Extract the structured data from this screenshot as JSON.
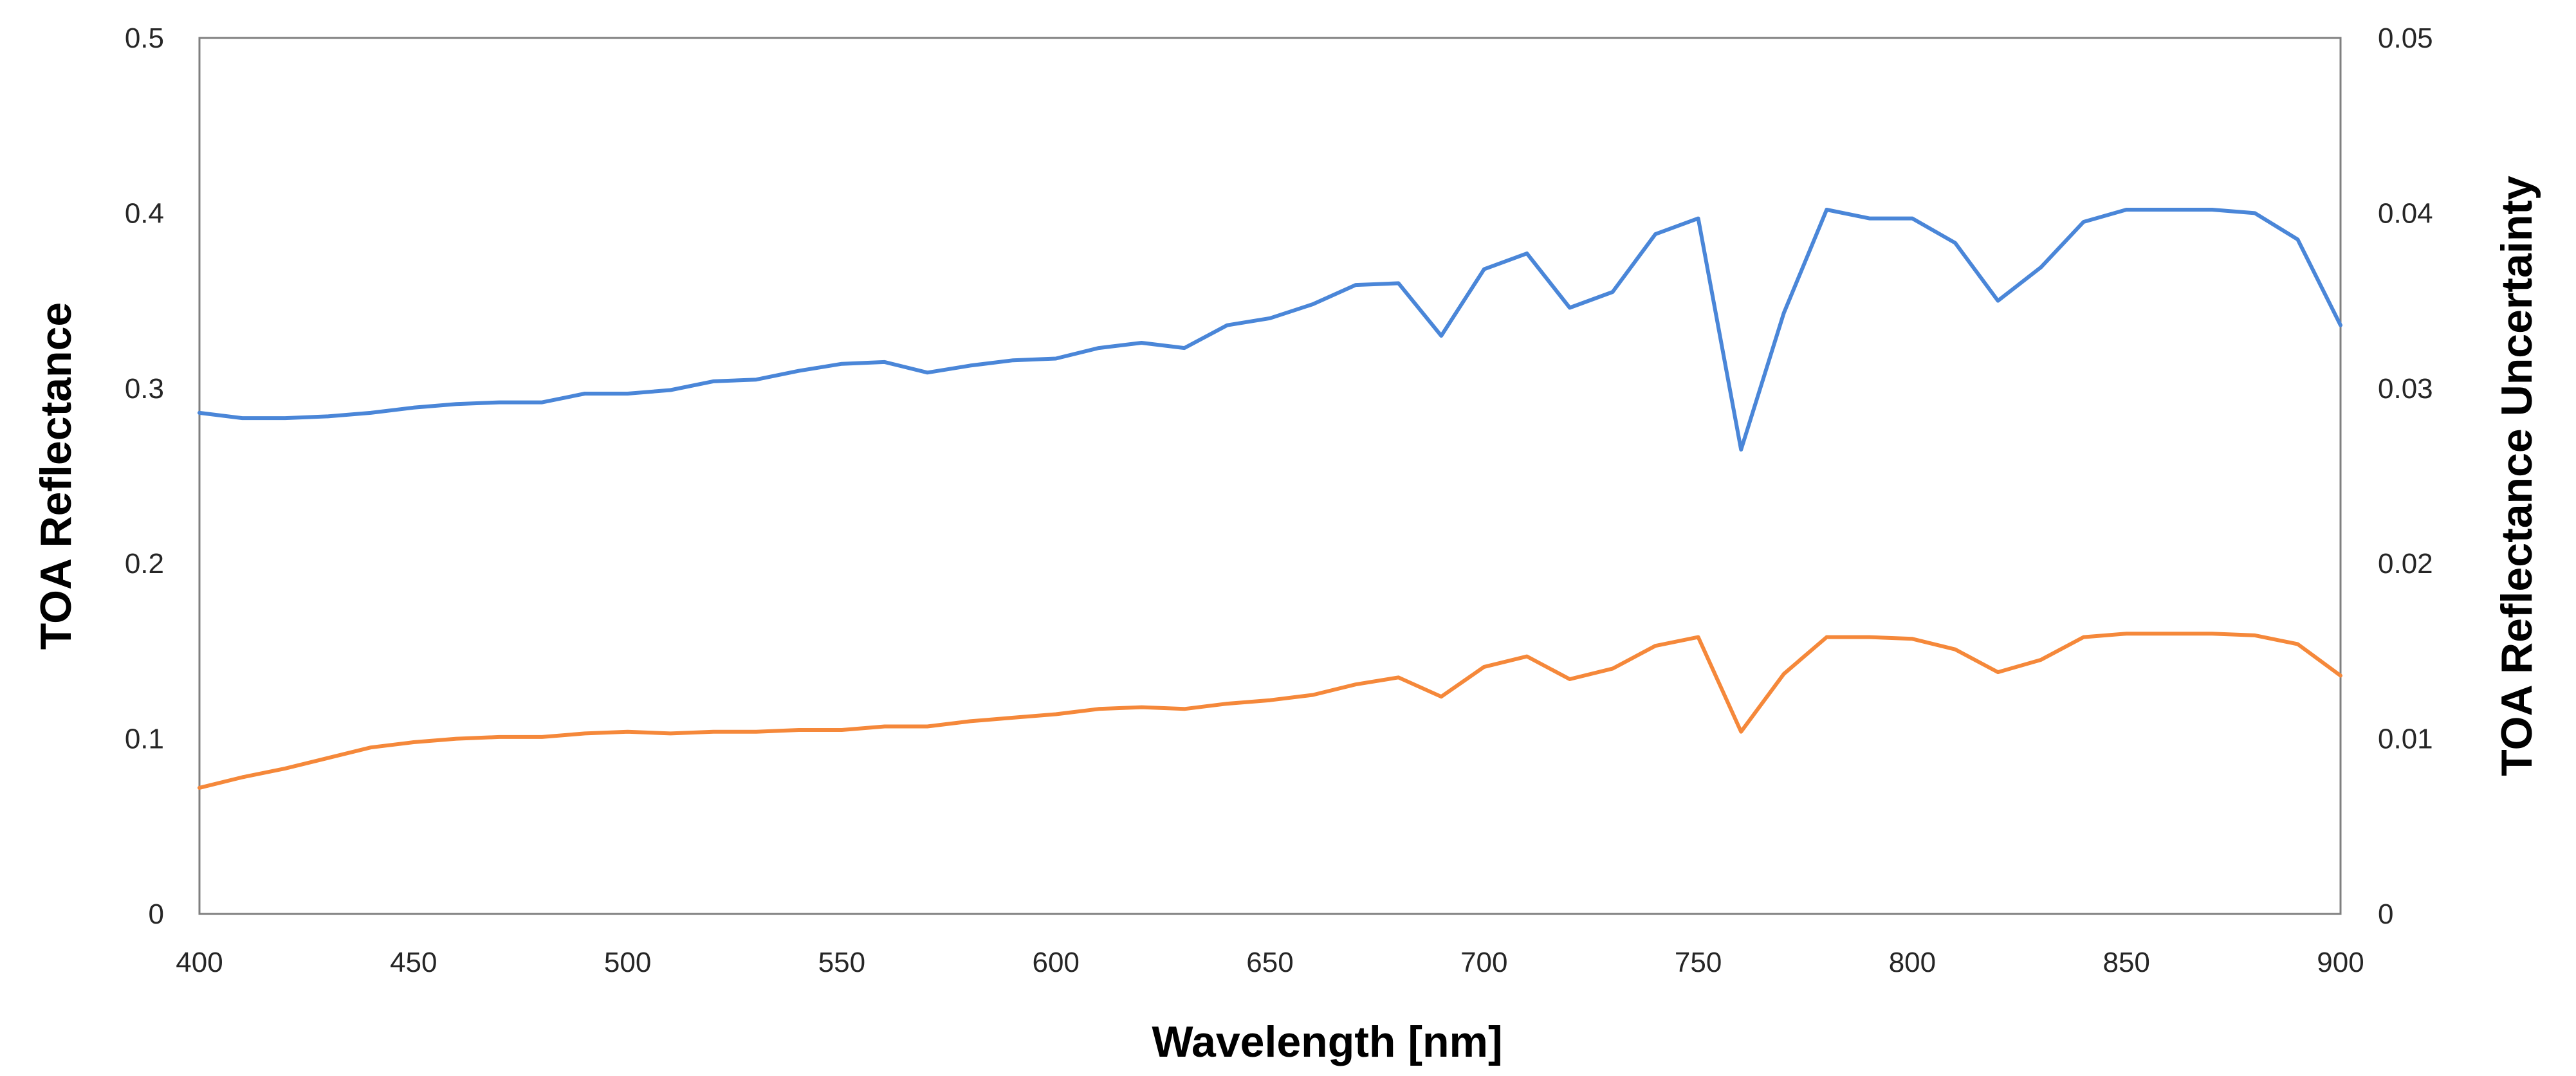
{
  "chart_data": {
    "type": "line",
    "title": "",
    "xlabel": "Wavelength [nm]",
    "ylabel": "TOA Reflectance",
    "y2label": "TOA Reflectance Uncertainty",
    "xlim": [
      400,
      900
    ],
    "ylim": [
      0,
      0.5
    ],
    "y2lim": [
      0,
      0.05
    ],
    "grid": false,
    "legend": "none",
    "x_ticks": [
      400,
      450,
      500,
      550,
      600,
      650,
      700,
      750,
      800,
      850,
      900
    ],
    "x_tick_labels": [
      "400",
      "450",
      "500",
      "550",
      "600",
      "650",
      "700",
      "750",
      "800",
      "850",
      "900"
    ],
    "y_ticks": [
      0,
      0.1,
      0.2,
      0.3,
      0.4,
      0.5
    ],
    "y_tick_labels": [
      "0",
      "0.1",
      "0.2",
      "0.3",
      "0.4",
      "0.5"
    ],
    "y2_ticks": [
      0,
      0.01,
      0.02,
      0.03,
      0.04,
      0.05
    ],
    "y2_tick_labels": [
      "0",
      "0.01",
      "0.02",
      "0.03",
      "0.04",
      "0.05"
    ],
    "x": [
      400,
      410,
      420,
      430,
      440,
      450,
      460,
      470,
      480,
      490,
      500,
      510,
      520,
      530,
      540,
      550,
      560,
      570,
      580,
      590,
      600,
      610,
      620,
      630,
      640,
      650,
      660,
      670,
      680,
      690,
      700,
      710,
      720,
      730,
      740,
      750,
      760,
      770,
      780,
      790,
      800,
      810,
      820,
      830,
      840,
      850,
      860,
      870,
      880,
      890,
      900
    ],
    "series": [
      {
        "name": "TOA Reflectance",
        "axis": "left",
        "color": "#4A86D8",
        "values": [
          0.286,
          0.283,
          0.283,
          0.284,
          0.286,
          0.289,
          0.291,
          0.292,
          0.292,
          0.297,
          0.297,
          0.299,
          0.304,
          0.305,
          0.31,
          0.314,
          0.315,
          0.309,
          0.313,
          0.316,
          0.317,
          0.323,
          0.326,
          0.323,
          0.336,
          0.34,
          0.348,
          0.359,
          0.36,
          0.33,
          0.368,
          0.377,
          0.346,
          0.355,
          0.388,
          0.397,
          0.265,
          0.343,
          0.402,
          0.397,
          0.397,
          0.383,
          0.35,
          0.369,
          0.395,
          0.402,
          0.402,
          0.402,
          0.4,
          0.385,
          0.336
        ]
      },
      {
        "name": "TOA Reflectance Uncertainty",
        "axis": "right",
        "color": "#F5883A",
        "values": [
          0.0072,
          0.0078,
          0.0083,
          0.0089,
          0.0095,
          0.0098,
          0.01,
          0.0101,
          0.0101,
          0.0103,
          0.0104,
          0.0103,
          0.0104,
          0.0104,
          0.0105,
          0.0105,
          0.0107,
          0.0107,
          0.011,
          0.0112,
          0.0114,
          0.0117,
          0.0118,
          0.0117,
          0.012,
          0.0122,
          0.0125,
          0.0131,
          0.0135,
          0.0124,
          0.0141,
          0.0147,
          0.0134,
          0.014,
          0.0153,
          0.0158,
          0.0104,
          0.0137,
          0.0158,
          0.0158,
          0.0157,
          0.0151,
          0.0138,
          0.0145,
          0.0158,
          0.016,
          0.016,
          0.016,
          0.0159,
          0.0154,
          0.0136
        ]
      }
    ]
  }
}
